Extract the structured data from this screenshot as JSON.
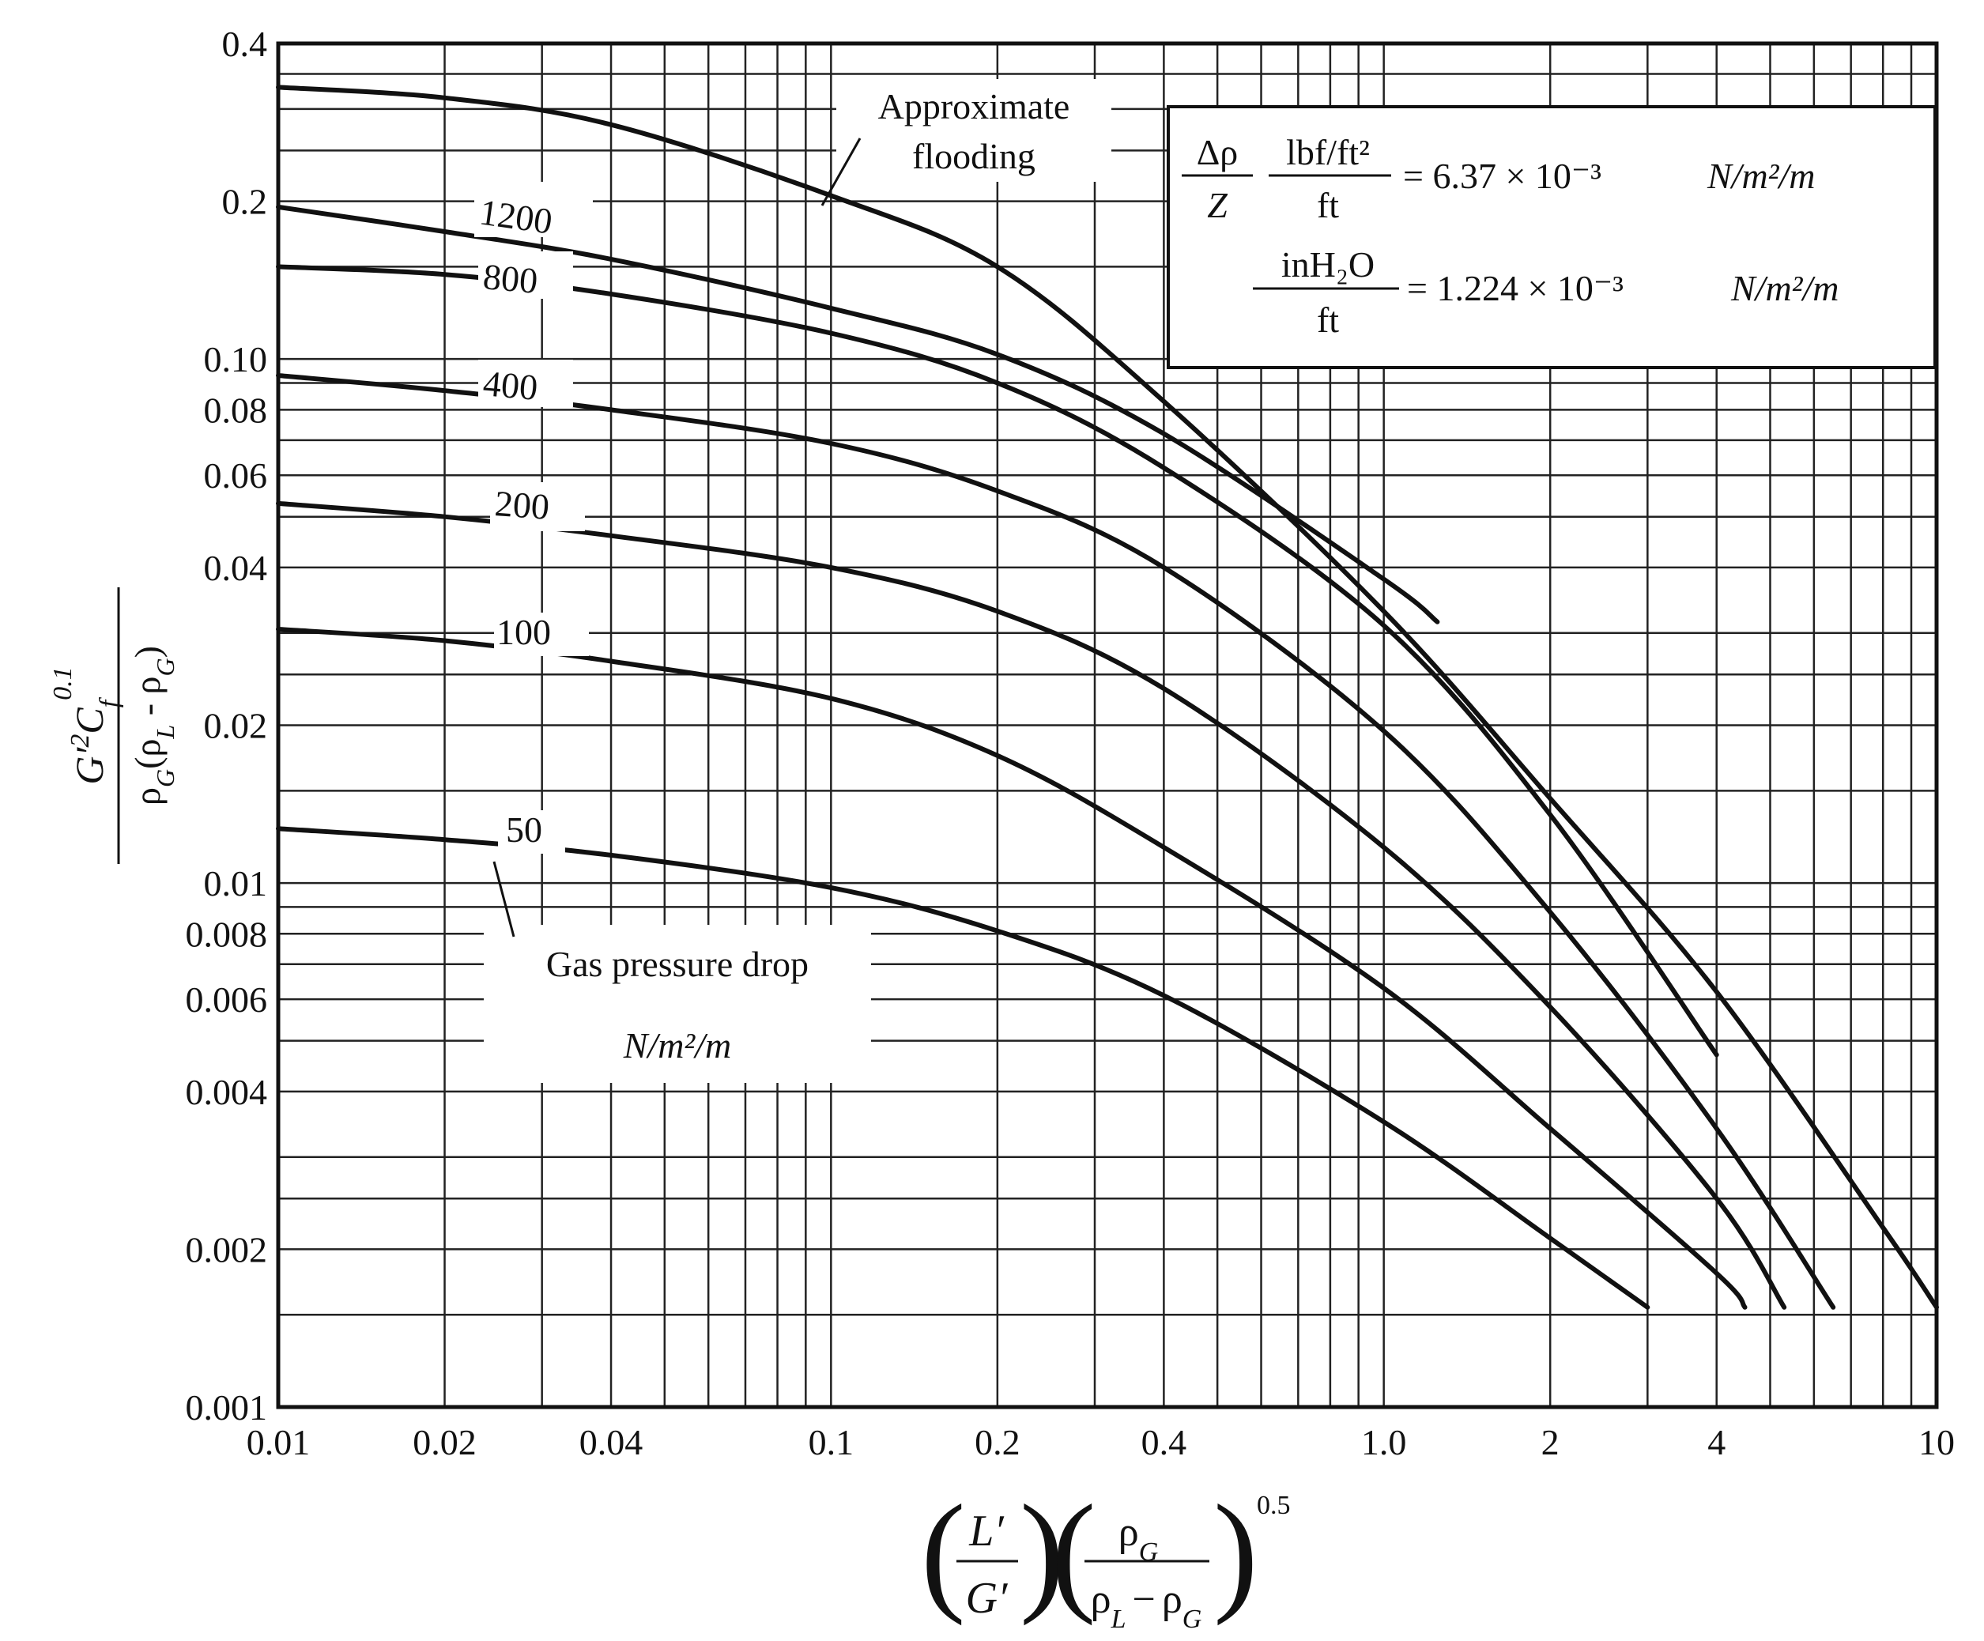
{
  "chart_data": {
    "type": "line",
    "title": "",
    "xscale": "log",
    "yscale": "log",
    "xlim": [
      0.01,
      10
    ],
    "ylim": [
      0.001,
      0.4
    ],
    "xlabel": {
      "num1": "L′",
      "den1": "G′",
      "num2": "ρ",
      "num2_sub": "G",
      "den2a": "ρ",
      "den2a_sub": "L",
      "den2_minus": "−",
      "den2b": "ρ",
      "den2b_sub": "G",
      "exponent": "0.5"
    },
    "ylabel": {
      "num_main": "G′",
      "num_sq": "2",
      "num_c": "C",
      "num_f": "f",
      "num_exp": "0.1",
      "den_rho": "ρ",
      "den_sub_g": "G",
      "den_open": "(",
      "den_rho_l": "ρ",
      "den_sub_l": "L",
      "den_minus": " - ",
      "den_rho_g": "ρ",
      "den_sub_g2": "G",
      "den_close": ")"
    },
    "x_ticks": [
      {
        "value": 0.01,
        "label": "0.01"
      },
      {
        "value": 0.02,
        "label": "0.02"
      },
      {
        "value": 0.04,
        "label": "0.04"
      },
      {
        "value": 0.1,
        "label": "0.1"
      },
      {
        "value": 0.2,
        "label": "0.2"
      },
      {
        "value": 0.4,
        "label": "0.4"
      },
      {
        "value": 1.0,
        "label": "1.0"
      },
      {
        "value": 2,
        "label": "2"
      },
      {
        "value": 4,
        "label": "4"
      },
      {
        "value": 10,
        "label": "10"
      }
    ],
    "y_ticks": [
      {
        "value": 0.001,
        "label": "0.001"
      },
      {
        "value": 0.002,
        "label": "0.002"
      },
      {
        "value": 0.004,
        "label": "0.004"
      },
      {
        "value": 0.006,
        "label": "0.006"
      },
      {
        "value": 0.008,
        "label": "0.008"
      },
      {
        "value": 0.01,
        "label": "0.01"
      },
      {
        "value": 0.02,
        "label": "0.02"
      },
      {
        "value": 0.04,
        "label": "0.04"
      },
      {
        "value": 0.06,
        "label": "0.06"
      },
      {
        "value": 0.08,
        "label": "0.08"
      },
      {
        "value": 0.1,
        "label": "0.10"
      },
      {
        "value": 0.2,
        "label": "0.2"
      },
      {
        "value": 0.4,
        "label": "0.4"
      }
    ],
    "grid": true,
    "series": [
      {
        "name": "Approximate flooding",
        "label_line1": "Approximate",
        "label_line2": "flooding",
        "points": [
          [
            0.01,
            0.33
          ],
          [
            0.02,
            0.315
          ],
          [
            0.04,
            0.28
          ],
          [
            0.1,
            0.205
          ],
          [
            0.2,
            0.15
          ],
          [
            0.4,
            0.083
          ],
          [
            1.0,
            0.033
          ],
          [
            2,
            0.0145
          ],
          [
            4,
            0.0062
          ],
          [
            8,
            0.0022
          ],
          [
            10,
            0.00155
          ]
        ]
      },
      {
        "name": "1200",
        "label": "1200",
        "points": [
          [
            0.01,
            0.195
          ],
          [
            0.02,
            0.175
          ],
          [
            0.04,
            0.155
          ],
          [
            0.1,
            0.125
          ],
          [
            0.2,
            0.102
          ],
          [
            0.4,
            0.072
          ],
          [
            1.0,
            0.038
          ],
          [
            1.25,
            0.0315
          ]
        ]
      },
      {
        "name": "800",
        "label": "800",
        "points": [
          [
            0.01,
            0.15
          ],
          [
            0.02,
            0.145
          ],
          [
            0.04,
            0.133
          ],
          [
            0.1,
            0.112
          ],
          [
            0.2,
            0.09
          ],
          [
            0.4,
            0.062
          ],
          [
            1.0,
            0.031
          ],
          [
            2,
            0.0135
          ],
          [
            4,
            0.0047
          ]
        ]
      },
      {
        "name": "400",
        "label": "400",
        "points": [
          [
            0.01,
            0.093
          ],
          [
            0.02,
            0.087
          ],
          [
            0.04,
            0.08
          ],
          [
            0.1,
            0.069
          ],
          [
            0.2,
            0.056
          ],
          [
            0.4,
            0.04
          ],
          [
            1.0,
            0.0195
          ],
          [
            2,
            0.0088
          ],
          [
            4,
            0.0034
          ],
          [
            6.5,
            0.00155
          ]
        ]
      },
      {
        "name": "200",
        "label": "200",
        "points": [
          [
            0.01,
            0.053
          ],
          [
            0.02,
            0.05
          ],
          [
            0.04,
            0.046
          ],
          [
            0.1,
            0.04
          ],
          [
            0.2,
            0.033
          ],
          [
            0.4,
            0.0235
          ],
          [
            1.0,
            0.0117
          ],
          [
            2,
            0.0058
          ],
          [
            4,
            0.0025
          ],
          [
            5.3,
            0.00155
          ]
        ]
      },
      {
        "name": "100",
        "label": "100",
        "points": [
          [
            0.01,
            0.0305
          ],
          [
            0.02,
            0.029
          ],
          [
            0.04,
            0.0265
          ],
          [
            0.1,
            0.0225
          ],
          [
            0.2,
            0.0175
          ],
          [
            0.4,
            0.0117
          ],
          [
            1.0,
            0.0063
          ],
          [
            2,
            0.0034
          ],
          [
            4,
            0.0018
          ],
          [
            4.5,
            0.00155
          ]
        ]
      },
      {
        "name": "50",
        "label": "50",
        "points": [
          [
            0.01,
            0.0127
          ],
          [
            0.02,
            0.0121
          ],
          [
            0.04,
            0.0113
          ],
          [
            0.1,
            0.0098
          ],
          [
            0.2,
            0.0081
          ],
          [
            0.4,
            0.0061
          ],
          [
            1.0,
            0.0035
          ],
          [
            2,
            0.0021
          ],
          [
            3,
            0.00155
          ]
        ]
      }
    ],
    "annotation_gas": {
      "line1": "Gas pressure drop",
      "line2": "N/m²/m"
    },
    "conversion": {
      "delta_rho": "Δρ",
      "z": "Z",
      "unit1_num": "lbf/ft²",
      "unit1_den": "ft",
      "value1": "= 6.37 × 10⁻³",
      "unit_tail1": "N/m²/m",
      "unit2_num": "inH₂O",
      "unit2_den": "ft",
      "value2": "= 1.224 × 10⁻³",
      "unit_tail2": "N/m²/m"
    }
  }
}
